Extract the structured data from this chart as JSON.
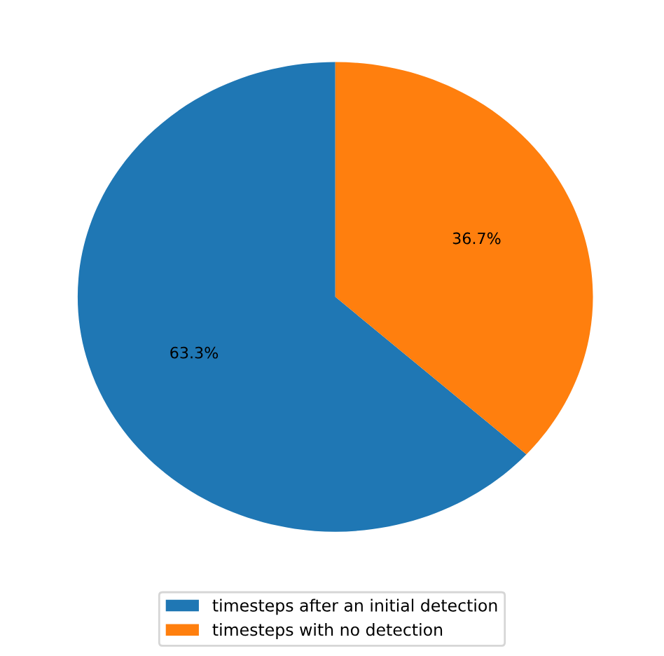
{
  "chart_data": {
    "type": "pie",
    "categories": [
      "timesteps after an initial detection",
      "timesteps with no detection"
    ],
    "values": [
      63.3,
      36.7
    ],
    "colors": [
      "#1f77b4",
      "#ff7f0e"
    ],
    "value_labels": [
      "63.3%",
      "36.7%"
    ],
    "legend": "bottom"
  }
}
